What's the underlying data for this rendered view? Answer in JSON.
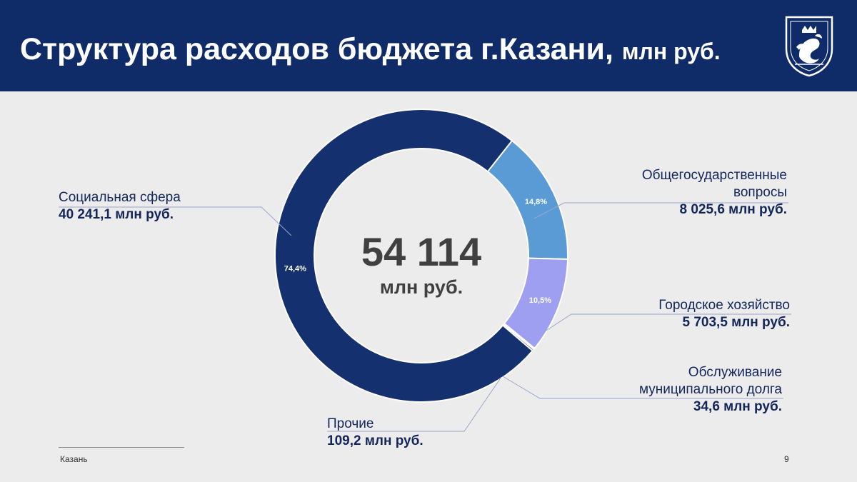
{
  "header": {
    "title": "Структура расходов бюджета г.Казани,",
    "title_unit": "млн руб."
  },
  "chart_data": {
    "type": "pie",
    "center_value": "54 114",
    "center_unit": "млн руб.",
    "series": [
      {
        "name": "Социальная сфера",
        "value": 40241.1,
        "value_label": "40 241,1 млн руб.",
        "percent_label": "74,4%",
        "color": "#14306e"
      },
      {
        "name": "Общегосударственные вопросы",
        "value": 8025.6,
        "value_label": "8 025,6 млн руб.",
        "percent_label": "14,8%",
        "color": "#5b9bd5"
      },
      {
        "name": "Городское хозяйство",
        "value": 5703.5,
        "value_label": "5 703,5 млн руб.",
        "percent_label": "10,5%",
        "color": "#9e9ff0"
      },
      {
        "name": "Обслуживание муниципального долга",
        "value": 34.6,
        "value_label": "34,6 млн руб.",
        "percent_label": "",
        "color": "#2a3fbf"
      },
      {
        "name": "Прочие",
        "value": 109.2,
        "value_label": "109,2 млн руб.",
        "percent_label": "",
        "color": "#0b1f4f"
      }
    ]
  },
  "labels": {
    "social": {
      "name": "Социальная сфера",
      "value": "40 241,1 млн руб."
    },
    "general_1": "Общегосударственные",
    "general_2": "вопросы",
    "general_value": "8 025,6 млн руб.",
    "city": {
      "name": "Городское хозяйство",
      "value": "5 703,5 млн руб."
    },
    "debt_1": "Обслуживание",
    "debt_2": "муниципального долга",
    "debt_value": "34,6 млн руб.",
    "other": {
      "name": "Прочие",
      "value": "109,2 млн руб."
    }
  },
  "footer": {
    "city": "Казань",
    "page": "9"
  },
  "colors": {
    "header_bg": "#0f2b68",
    "background": "#ececec",
    "text_dark": "#12265a"
  }
}
